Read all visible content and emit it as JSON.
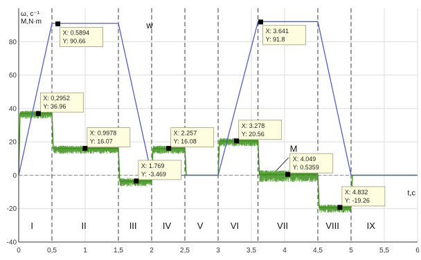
{
  "chart_data": {
    "type": "line",
    "ylabel_lines": [
      "ω, c⁻¹",
      "M,N·m"
    ],
    "xlabel": "t,c",
    "xlim": [
      0,
      6
    ],
    "ylim": [
      -40,
      100
    ],
    "x_ticks": [
      {
        "v": 0,
        "label": "0"
      },
      {
        "v": 0.5,
        "label": "0,5"
      },
      {
        "v": 1,
        "label": "1"
      },
      {
        "v": 1.5,
        "label": "1,5"
      },
      {
        "v": 2,
        "label": "2"
      },
      {
        "v": 2.5,
        "label": "2,5"
      },
      {
        "v": 3,
        "label": "3"
      },
      {
        "v": 3.5,
        "label": "3,5"
      },
      {
        "v": 4,
        "label": "4"
      },
      {
        "v": 4.5,
        "label": "4,5"
      },
      {
        "v": 5,
        "label": "5"
      },
      {
        "v": 5.5,
        "label": "5,5"
      },
      {
        "v": 6,
        "label": "6"
      }
    ],
    "y_ticks": [
      -40,
      -20,
      0,
      20,
      40,
      60,
      80
    ],
    "grid": true,
    "stage_boundaries": [
      0.5,
      1.5,
      2,
      2.5,
      3,
      3.6,
      4.5,
      5
    ],
    "stages": [
      {
        "label": "I",
        "x": 0.2
      },
      {
        "label": "II",
        "x": 0.98
      },
      {
        "label": "III",
        "x": 1.72
      },
      {
        "label": "IV",
        "x": 2.23
      },
      {
        "label": "V",
        "x": 2.73
      },
      {
        "label": "VI",
        "x": 3.25
      },
      {
        "label": "VII",
        "x": 3.97
      },
      {
        "label": "VIII",
        "x": 4.72
      },
      {
        "label": "IX",
        "x": 5.3
      }
    ],
    "series": [
      {
        "name": "w",
        "color": "#4f5dcc",
        "x": [
          0,
          0.5,
          1.5,
          2.0,
          3.0,
          3.6,
          4.5,
          5.0,
          6.0
        ],
        "y": [
          0,
          91,
          91,
          0,
          0,
          92,
          92,
          0,
          0
        ]
      },
      {
        "name": "M",
        "color": "#3e8f1c",
        "x": [
          0,
          0.02,
          0.5,
          0.52,
          1.5,
          1.52,
          2.0,
          2.02,
          2.5,
          2.52,
          3.0,
          3.02,
          3.6,
          3.62,
          4.5,
          4.52,
          5.0,
          5.02,
          6.0
        ],
        "y": [
          0,
          37,
          37,
          16,
          16,
          -3.5,
          -3.5,
          16,
          16,
          0,
          0,
          20.5,
          20.5,
          0.5,
          0.5,
          -19.3,
          -19.3,
          0,
          0
        ]
      }
    ],
    "series_labels": [
      {
        "name": "w",
        "text": "w",
        "x": 1.92,
        "y": 88
      },
      {
        "name": "M",
        "text": "M",
        "x": 4.08,
        "y": 14
      }
    ],
    "datatips": [
      {
        "x": 0.2952,
        "y": 36.96,
        "x_text": "X: 0,2952",
        "y_text": "Y: 36.96"
      },
      {
        "x": 0.5894,
        "y": 90.66,
        "x_text": "X: 0.5894",
        "y_text": "Y: 90.66"
      },
      {
        "x": 0.9978,
        "y": 16.07,
        "x_text": "X: 0.9978",
        "y_text": "Y: 16.07"
      },
      {
        "x": 1.769,
        "y": -3.469,
        "x_text": "X: 1.769",
        "y_text": "Y: -3.469"
      },
      {
        "x": 2.257,
        "y": 16.08,
        "x_text": "X: 2.257",
        "y_text": "Y: 16.08"
      },
      {
        "x": 3.278,
        "y": 20.56,
        "x_text": "X: 3.278",
        "y_text": "Y: 20.56"
      },
      {
        "x": 3.641,
        "y": 91.8,
        "x_text": "X: 3.641",
        "y_text": "Y: 91.8"
      },
      {
        "x": 4.049,
        "y": 0.5359,
        "x_text": "X: 4.049",
        "y_text": "Y: 0.5359"
      },
      {
        "x": 4.832,
        "y": -19.26,
        "x_text": "X: 4.832",
        "y_text": "Y: -19.26"
      }
    ]
  }
}
